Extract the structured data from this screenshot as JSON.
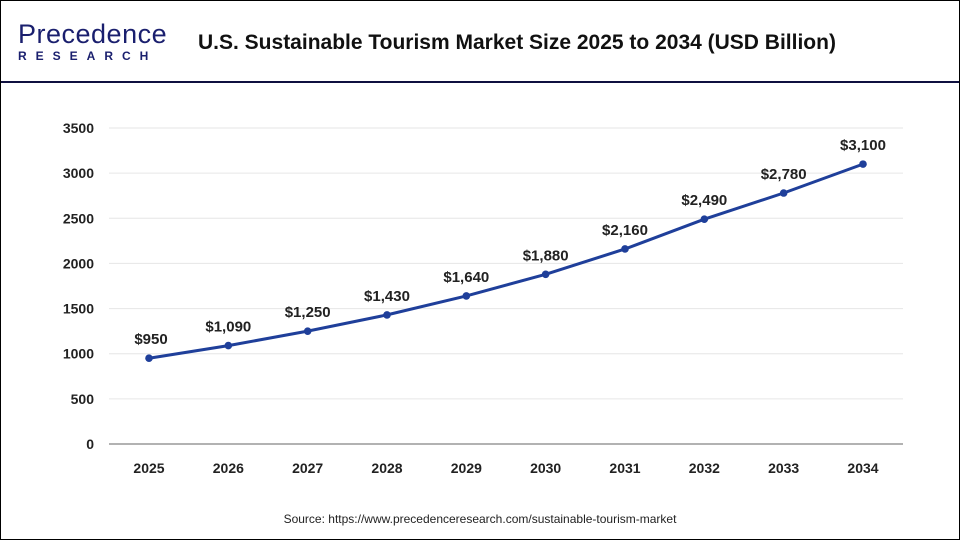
{
  "logo": {
    "line1": "Precedence",
    "line2": "RESEARCH"
  },
  "header": {
    "title": "U.S. Sustainable Tourism Market Size 2025 to 2034 (USD Billion)"
  },
  "source": "Source: https://www.precedenceresearch.com/sustainable-tourism-market",
  "colors": {
    "line": "#1f3f9a",
    "header_rule": "#0f1040",
    "grid": "#e6e6e6"
  },
  "chart_data": {
    "type": "line",
    "title": "U.S. Sustainable Tourism Market Size 2025 to 2034 (USD Billion)",
    "xlabel": "",
    "ylabel": "",
    "categories": [
      "2025",
      "2026",
      "2027",
      "2028",
      "2029",
      "2030",
      "2031",
      "2032",
      "2033",
      "2034"
    ],
    "values": [
      950,
      1090,
      1250,
      1430,
      1640,
      1880,
      2160,
      2490,
      2780,
      3100
    ],
    "data_labels": [
      "$950",
      "$1,090",
      "$1,250",
      "$1,430",
      "$1,640",
      "$1,880",
      "$2,160",
      "$2,490",
      "$2,780",
      "$3,100"
    ],
    "ylim": [
      0,
      3500
    ],
    "yticks": [
      0,
      500,
      1000,
      1500,
      2000,
      2500,
      3000,
      3500
    ],
    "grid": true,
    "legend": "none"
  }
}
